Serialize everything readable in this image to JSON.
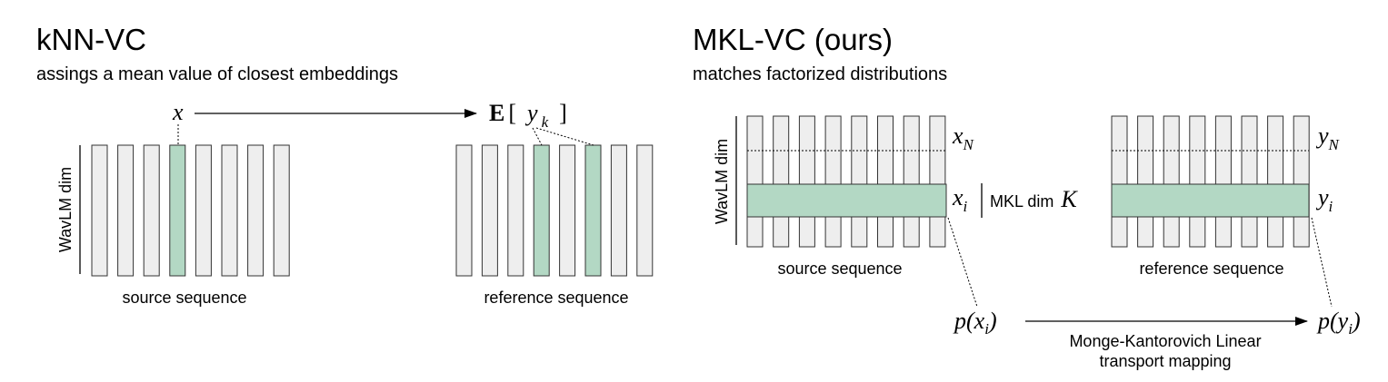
{
  "left_panel": {
    "title": "kNN-VC",
    "subtitle": "assings a mean value of closest embeddings",
    "axis_label": "WavLM dim",
    "source_caption": "source sequence",
    "reference_caption": "reference sequence",
    "x_symbol": "x",
    "expectation_symbol": "E",
    "bracket_open": "[",
    "bracket_close": "]",
    "y_symbol": "y",
    "y_subscript": "k",
    "source_bar_count": 8,
    "source_highlight": [
      3
    ],
    "reference_bar_count": 8,
    "reference_highlight": [
      3,
      5
    ]
  },
  "right_panel": {
    "title": "MKL-VC (ours)",
    "subtitle": "matches factorized distributions",
    "axis_label": "WavLM dim",
    "source_caption": "source sequence",
    "reference_caption": "reference sequence",
    "x_symbol": "x",
    "xN_subscript": "N",
    "xi_subscript": "i",
    "y_symbol": "y",
    "yN_subscript": "N",
    "yi_subscript": "i",
    "mkl_label": "MKL dim",
    "mkl_symbol": "K",
    "px_label": "p(x",
    "px_sub": "i",
    "py_label": "p(y",
    "py_sub": "i",
    "close_paren": ")",
    "mapping_line1": "Monge-Kantorovich Linear",
    "mapping_line2": "transport mapping",
    "source_bar_count": 8,
    "reference_bar_count": 8
  },
  "colors": {
    "highlight": "#b3d8c4",
    "bar_fill": "#eeeeee",
    "stroke": "#333333"
  }
}
